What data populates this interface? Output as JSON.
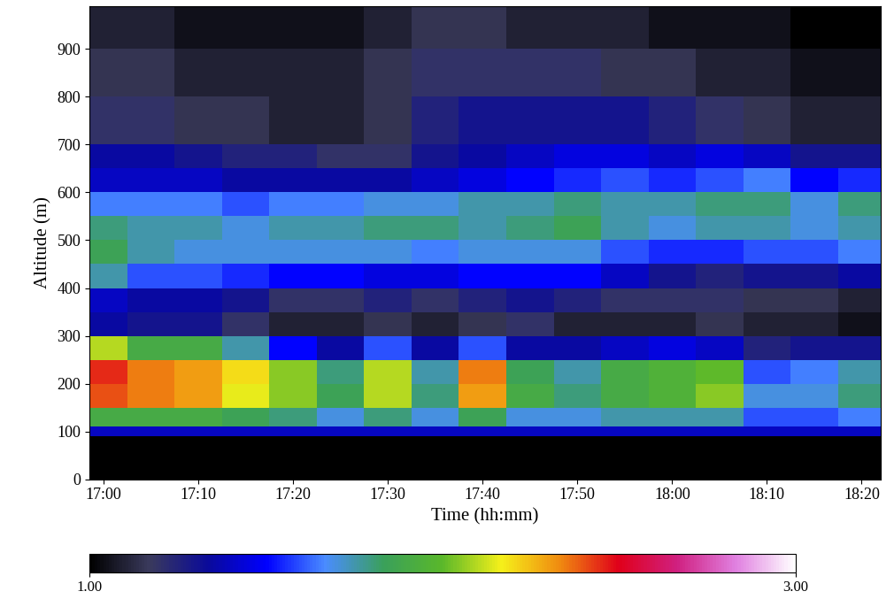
{
  "chart_data": {
    "type": "heatmap",
    "xlabel": "Time (hh:mm)",
    "ylabel": "Altitude (m)",
    "x_edges": [
      1017.5,
      1022.5,
      1027.5,
      1032.5,
      1037.5,
      1042.5,
      1047.5,
      1052.5,
      1057.5,
      1062.5,
      1067.5,
      1072.5,
      1077.5,
      1082.5,
      1087.5,
      1092.5,
      1097.5,
      1102.5
    ],
    "y_edges": [
      0,
      90,
      110,
      150,
      200,
      250,
      300,
      350,
      400,
      450,
      500,
      550,
      600,
      650,
      700,
      800,
      900,
      1000
    ],
    "cells": [
      [
        1.0,
        1.0,
        1.0,
        1.0,
        1.0,
        1.0,
        1.0,
        1.0,
        1.0,
        1.0,
        1.0,
        1.0,
        1.0,
        1.0,
        1.0,
        1.0,
        1.0
      ],
      [
        1.4,
        1.4,
        1.4,
        1.4,
        1.4,
        1.4,
        1.4,
        1.4,
        1.4,
        1.4,
        1.4,
        1.4,
        1.4,
        1.4,
        1.4,
        1.4,
        1.4
      ],
      [
        1.9,
        1.9,
        1.9,
        1.85,
        1.8,
        1.7,
        1.8,
        1.7,
        1.85,
        1.7,
        1.7,
        1.75,
        1.75,
        1.75,
        1.6,
        1.6,
        1.65
      ],
      [
        2.4,
        2.35,
        2.3,
        2.15,
        2.05,
        1.85,
        2.1,
        1.8,
        2.3,
        1.9,
        1.8,
        1.9,
        1.95,
        2.05,
        1.7,
        1.7,
        1.8
      ],
      [
        2.45,
        2.35,
        2.3,
        2.2,
        2.05,
        1.8,
        2.1,
        1.75,
        2.35,
        1.85,
        1.75,
        1.9,
        1.95,
        2.0,
        1.6,
        1.65,
        1.75
      ],
      [
        2.1,
        1.9,
        1.9,
        1.75,
        1.5,
        1.35,
        1.6,
        1.35,
        1.6,
        1.35,
        1.35,
        1.4,
        1.45,
        1.4,
        1.25,
        1.3,
        1.3
      ],
      [
        1.35,
        1.3,
        1.3,
        1.2,
        1.1,
        1.1,
        1.15,
        1.1,
        1.15,
        1.2,
        1.1,
        1.1,
        1.1,
        1.15,
        1.1,
        1.1,
        1.05
      ],
      [
        1.4,
        1.35,
        1.35,
        1.3,
        1.2,
        1.2,
        1.25,
        1.2,
        1.25,
        1.3,
        1.25,
        1.2,
        1.2,
        1.2,
        1.15,
        1.15,
        1.1
      ],
      [
        1.75,
        1.6,
        1.6,
        1.55,
        1.5,
        1.5,
        1.45,
        1.45,
        1.5,
        1.5,
        1.5,
        1.4,
        1.3,
        1.25,
        1.3,
        1.3,
        1.35
      ],
      [
        1.85,
        1.75,
        1.7,
        1.7,
        1.7,
        1.7,
        1.7,
        1.65,
        1.7,
        1.7,
        1.7,
        1.6,
        1.55,
        1.55,
        1.6,
        1.6,
        1.65
      ],
      [
        1.8,
        1.75,
        1.75,
        1.7,
        1.75,
        1.75,
        1.8,
        1.8,
        1.75,
        1.8,
        1.85,
        1.75,
        1.7,
        1.75,
        1.75,
        1.7,
        1.75
      ],
      [
        1.65,
        1.65,
        1.65,
        1.6,
        1.65,
        1.65,
        1.7,
        1.7,
        1.75,
        1.75,
        1.8,
        1.75,
        1.75,
        1.8,
        1.8,
        1.7,
        1.8
      ],
      [
        1.4,
        1.4,
        1.4,
        1.35,
        1.35,
        1.35,
        1.35,
        1.4,
        1.45,
        1.5,
        1.55,
        1.6,
        1.55,
        1.6,
        1.65,
        1.5,
        1.55
      ],
      [
        1.35,
        1.35,
        1.3,
        1.25,
        1.25,
        1.2,
        1.2,
        1.3,
        1.35,
        1.4,
        1.45,
        1.45,
        1.4,
        1.45,
        1.4,
        1.3,
        1.3
      ],
      [
        1.2,
        1.2,
        1.15,
        1.15,
        1.1,
        1.1,
        1.15,
        1.25,
        1.3,
        1.3,
        1.3,
        1.3,
        1.25,
        1.2,
        1.15,
        1.1,
        1.1
      ],
      [
        1.15,
        1.15,
        1.1,
        1.1,
        1.1,
        1.1,
        1.15,
        1.2,
        1.2,
        1.2,
        1.2,
        1.15,
        1.15,
        1.1,
        1.1,
        1.05,
        1.05
      ],
      [
        1.1,
        1.1,
        1.05,
        1.05,
        1.05,
        1.05,
        1.1,
        1.15,
        1.15,
        1.1,
        1.1,
        1.1,
        1.05,
        1.05,
        1.05,
        1.0,
        1.0
      ]
    ],
    "xlim": [
      1018.5,
      1102
    ],
    "ylim": [
      0,
      990
    ],
    "xticks": [
      {
        "value": 1020,
        "label": "17:00"
      },
      {
        "value": 1030,
        "label": "17:10"
      },
      {
        "value": 1040,
        "label": "17:20"
      },
      {
        "value": 1050,
        "label": "17:30"
      },
      {
        "value": 1060,
        "label": "17:40"
      },
      {
        "value": 1070,
        "label": "17:50"
      },
      {
        "value": 1080,
        "label": "18:00"
      },
      {
        "value": 1090,
        "label": "18:10"
      },
      {
        "value": 1100,
        "label": "18:20"
      }
    ],
    "yticks": [
      0,
      100,
      200,
      300,
      400,
      500,
      600,
      700,
      800,
      900
    ],
    "colorbar": {
      "range": [
        1,
        3
      ],
      "ticks": [
        {
          "value": 1,
          "label": "1.00"
        },
        {
          "value": 3,
          "label": "3.00"
        }
      ]
    }
  }
}
